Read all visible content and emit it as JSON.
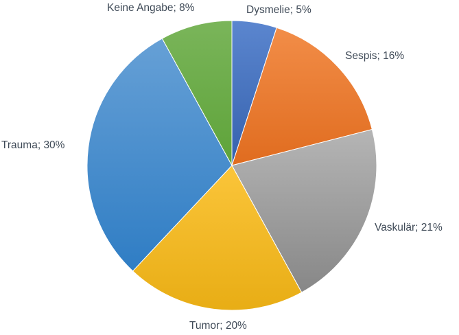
{
  "chart_data": {
    "type": "pie",
    "title": "",
    "start_angle_deg": 0,
    "direction": "clockwise",
    "slices": [
      {
        "category": "Dysmelie",
        "value": 5,
        "label": "Dysmelie; 5%",
        "color": "#4472c4",
        "color_light": "#5b86cf",
        "color_dark": "#3561ad"
      },
      {
        "category": "Sespis",
        "value": 16,
        "label": "Sespis; 16%",
        "color": "#ed7d31",
        "color_light": "#f28d48",
        "color_dark": "#e06c1f"
      },
      {
        "category": "Vaskulär",
        "value": 21,
        "label": "Vaskulär; 21%",
        "color": "#a5a5a5",
        "color_light": "#b5b5b5",
        "color_dark": "#878787"
      },
      {
        "category": "Tumor",
        "value": 20,
        "label": "Tumor; 20%",
        "color": "#ffc000",
        "color_light": "#fbc53a",
        "color_dark": "#e8ad15"
      },
      {
        "category": "Trauma",
        "value": 30,
        "label": "Trauma; 30%",
        "color": "#5b9bd5",
        "color_light": "#66a0d6",
        "color_dark": "#2f7dc4"
      },
      {
        "category": "Keine Angabe",
        "value": 8,
        "label": "Keine Angabe; 8%",
        "color": "#70ad47",
        "color_light": "#7ab55a",
        "color_dark": "#5ea339"
      }
    ]
  }
}
